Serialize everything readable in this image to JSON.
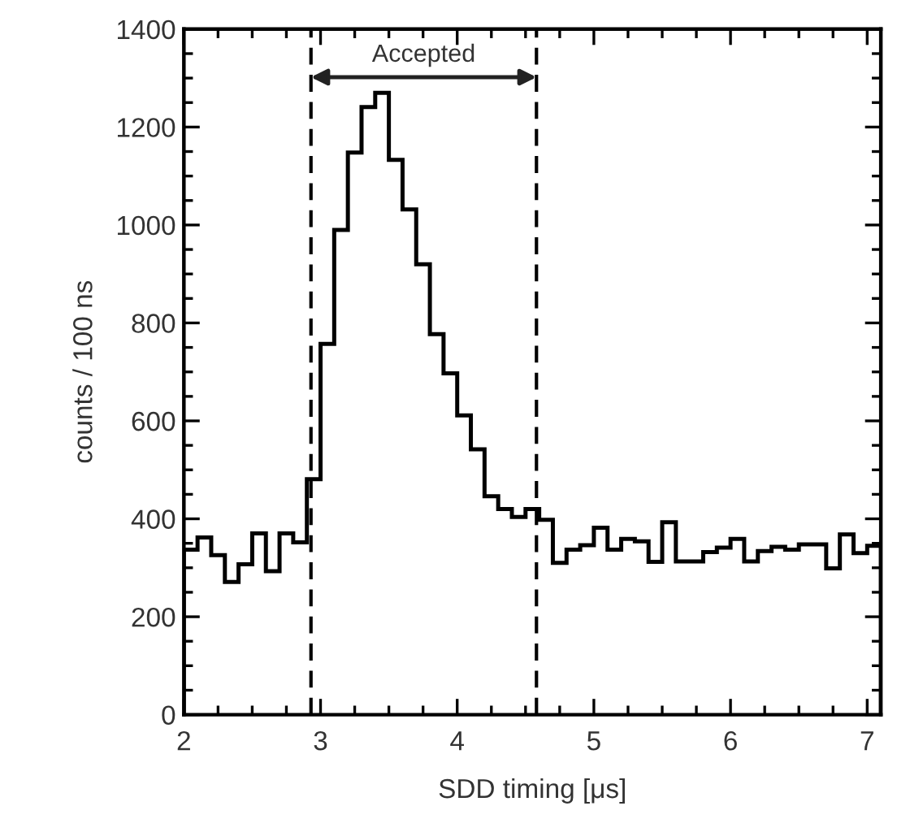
{
  "chart_data": {
    "type": "histogram",
    "xlabel": "SDD timing [μs]",
    "ylabel": "counts / 100 ns",
    "bins": [
      2.0,
      2.1,
      2.2,
      2.3,
      2.4,
      2.5,
      2.6,
      2.7,
      2.8,
      2.9,
      3.0,
      3.1,
      3.2,
      3.3,
      3.4,
      3.5,
      3.6,
      3.7,
      3.8,
      3.9,
      4.0,
      4.1,
      4.2,
      4.3,
      4.4,
      4.5,
      4.6,
      4.7,
      4.8,
      4.9,
      5.0,
      5.1,
      5.2,
      5.3,
      5.4,
      5.5,
      5.6,
      5.7,
      5.8,
      5.9,
      6.0,
      6.1,
      6.2,
      6.3,
      6.4,
      6.5,
      6.6,
      6.7,
      6.8,
      6.9,
      7.0,
      7.1
    ],
    "values": [
      337,
      362,
      326,
      271,
      307,
      370,
      293,
      370,
      352,
      481,
      757,
      990,
      1148,
      1241,
      1270,
      1133,
      1032,
      920,
      777,
      697,
      611,
      542,
      446,
      420,
      404,
      420,
      398,
      310,
      337,
      346,
      382,
      337,
      359,
      354,
      312,
      393,
      313,
      313,
      332,
      341,
      359,
      313,
      334,
      343,
      337,
      348,
      348,
      299,
      368,
      330,
      345
    ],
    "color": "#000000",
    "xlim": [
      2,
      7.1
    ],
    "ylim": [
      0,
      1400
    ],
    "xticks": [
      2,
      3,
      4,
      5,
      6,
      7
    ],
    "yticks": [
      0,
      200,
      400,
      600,
      800,
      1000,
      1200,
      1400
    ],
    "grid": false,
    "ref_lines": [
      {
        "axis": "x",
        "value": 2.93,
        "color": "#000000",
        "line_style": "dashed"
      },
      {
        "axis": "x",
        "value": 4.58,
        "color": "#000000",
        "line_style": "dashed"
      }
    ],
    "annotations": [
      "Accepted"
    ]
  }
}
